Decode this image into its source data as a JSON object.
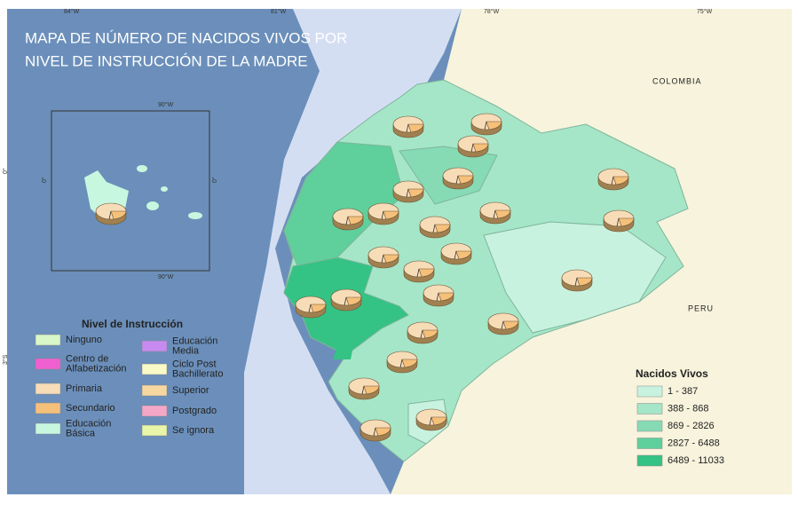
{
  "title": [
    "MAPA DE NÚMERO DE NACIDOS VIVOS POR",
    "NIVEL DE INSTRUCCIÓN DE LA MADRE"
  ],
  "graticule": {
    "top": [
      "84°W",
      "81°W",
      "78°W",
      "75°W"
    ],
    "left": [
      "0°",
      "3°S"
    ]
  },
  "inset": {
    "top": "90°W",
    "bottom": "90°W",
    "left": "0°",
    "right": "0°"
  },
  "countries": [
    "COLOMBIA",
    "PERU"
  ],
  "legend_instruccion": {
    "title": "Nivel de Instrucción",
    "items": [
      {
        "label": [
          "Ninguno"
        ],
        "color": "#d9f7c8"
      },
      {
        "label": [
          "Centro de",
          "Alfabetización"
        ],
        "color": "#f060d0"
      },
      {
        "label": [
          "Primaria"
        ],
        "color": "#f7dcb8"
      },
      {
        "label": [
          "Secundario"
        ],
        "color": "#f5c07a"
      },
      {
        "label": [
          "Educación",
          "Básica"
        ],
        "color": "#c8f7e0"
      },
      {
        "label": [
          "Educación",
          "Media"
        ],
        "color": "#c68af0"
      },
      {
        "label": [
          "Ciclo Post",
          "Bachillerato"
        ],
        "color": "#fafac8"
      },
      {
        "label": [
          "Superior"
        ],
        "color": "#f7d7a0"
      },
      {
        "label": [
          "Postgrado"
        ],
        "color": "#f5a7c8"
      },
      {
        "label": [
          "Se ignora"
        ],
        "color": "#e9f5a8"
      }
    ]
  },
  "legend_nacidos": {
    "title": "Nacidos Vivos",
    "classes": [
      {
        "label": "1 - 387",
        "color": "#c8f2e0"
      },
      {
        "label": "388 - 868",
        "color": "#a5e6c8"
      },
      {
        "label": "869 - 2826",
        "color": "#86dbb5"
      },
      {
        "label": "2827 - 6488",
        "color": "#5fcf9c"
      },
      {
        "label": "6489 - 11033",
        "color": "#35c285"
      }
    ]
  }
}
